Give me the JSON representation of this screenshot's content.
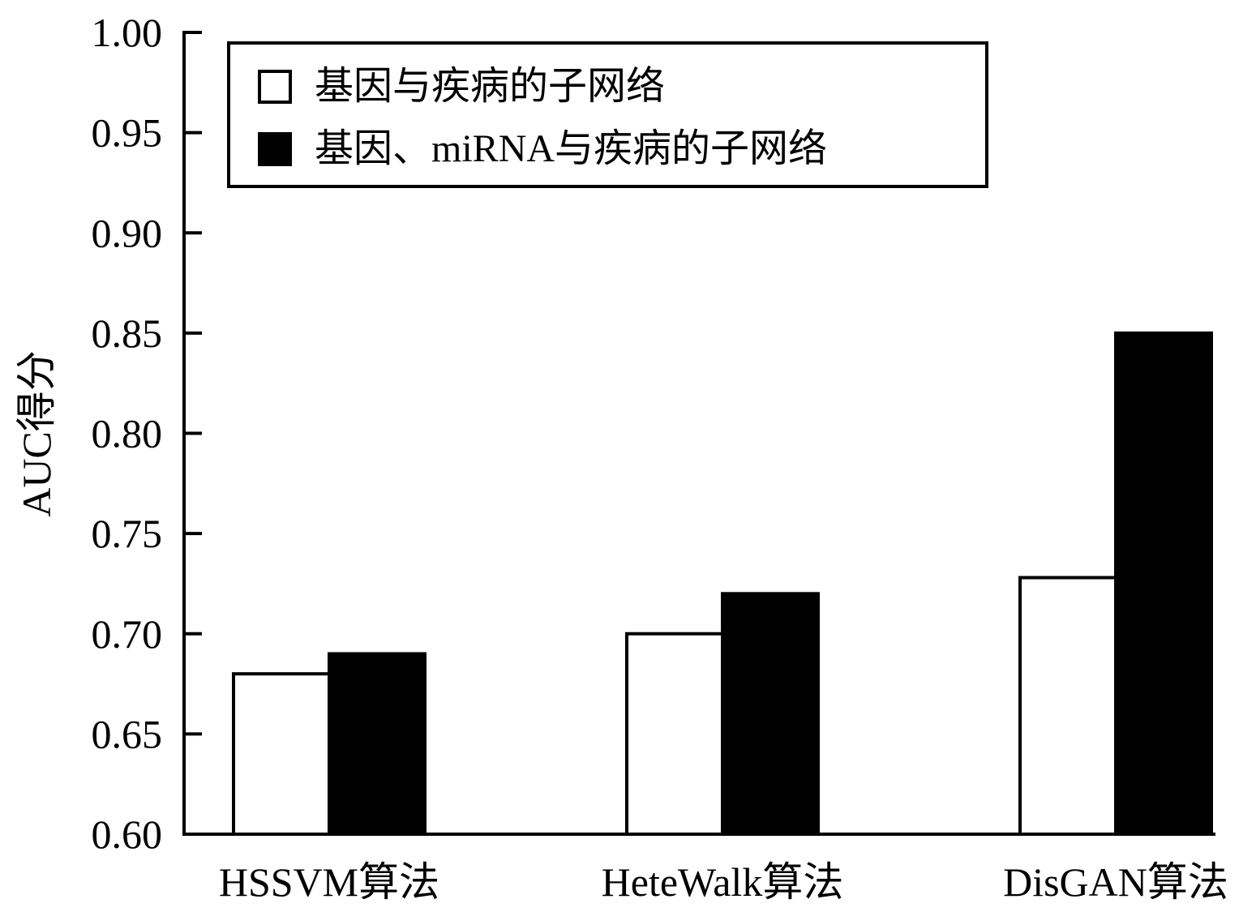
{
  "chart_data": {
    "type": "bar",
    "title": "",
    "xlabel": "",
    "ylabel": "AUC得分",
    "ylim": [
      0.6,
      1.0
    ],
    "yticks": [
      "0.60",
      "0.65",
      "0.70",
      "0.75",
      "0.80",
      "0.85",
      "0.90",
      "0.95",
      "1.00"
    ],
    "categories": [
      "HSSVM算法",
      "HeteWalk算法",
      "DisGAN算法"
    ],
    "series": [
      {
        "name": "基因与疾病的子网络",
        "color": "#ffffff",
        "values": [
          0.68,
          0.7,
          0.728
        ]
      },
      {
        "name": "基因、miRNA与疾病的子网络",
        "color": "#000000",
        "values": [
          0.69,
          0.72,
          0.85
        ]
      }
    ],
    "grid": false,
    "legend": {
      "position": "top"
    }
  }
}
